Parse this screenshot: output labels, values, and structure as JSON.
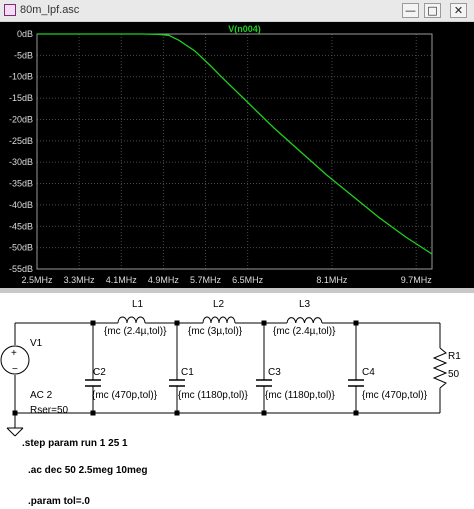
{
  "window": {
    "title": "80m_lpf.asc",
    "min_glyph": "—",
    "max_glyph": "□",
    "close_glyph": "✕"
  },
  "chart_data": {
    "type": "line",
    "series": [
      {
        "name": "V(n004)",
        "color": "#1fcf1f",
        "x": [
          2.5,
          3.0,
          3.5,
          4.0,
          4.5,
          4.8,
          5.0,
          5.2,
          5.5,
          5.8,
          6.0,
          6.5,
          7.0,
          7.5,
          8.0,
          8.5,
          9.0,
          9.5,
          10.0
        ],
        "y": [
          0,
          0,
          0,
          0,
          0,
          -0.1,
          -0.3,
          -1.5,
          -4,
          -7.5,
          -10,
          -16,
          -22,
          -27.5,
          -33,
          -38,
          -43,
          -47.5,
          -51.5
        ]
      }
    ],
    "x_tick_labels": [
      "2.5MHz",
      "3.3MHz",
      "4.1MHz",
      "4.9MHz",
      "5.7MHz",
      "6.5MHz",
      "8.1MHz",
      "9.7MHz"
    ],
    "x_tick_values": [
      2.5,
      3.3,
      4.1,
      4.9,
      5.7,
      6.5,
      8.1,
      9.7
    ],
    "y_tick_labels": [
      "0dB",
      "-5dB",
      "-10dB",
      "-15dB",
      "-20dB",
      "-25dB",
      "-30dB",
      "-35dB",
      "-40dB",
      "-45dB",
      "-50dB",
      "-55dB"
    ],
    "y_tick_values": [
      0,
      -5,
      -10,
      -15,
      -20,
      -25,
      -30,
      -35,
      -40,
      -45,
      -50,
      -55
    ],
    "xlim": [
      2.5,
      10.0
    ],
    "ylim": [
      -55,
      0
    ],
    "grid": true,
    "background": "#000000",
    "grid_color": "#4a4a4a",
    "label_color": "#dcdcdc"
  },
  "schematic": {
    "components": {
      "V1": {
        "name": "V1",
        "value_line1": "AC 2",
        "value_line2": "Rser=50"
      },
      "L1": {
        "name": "L1",
        "value": "{mc (2.4µ,tol)}"
      },
      "L2": {
        "name": "L2",
        "value": "{mc (3µ,tol)}"
      },
      "L3": {
        "name": "L3",
        "value": "{mc (2.4µ,tol)}"
      },
      "C2": {
        "name": "C2",
        "value": "{mc (470p,tol)}"
      },
      "C1": {
        "name": "C1",
        "value": "{mc (1180p,tol)}"
      },
      "C3": {
        "name": "C3",
        "value": "{mc (1180p,tol)}"
      },
      "C4": {
        "name": "C4",
        "value": "{mc (470p,tol)}"
      },
      "R1": {
        "name": "R1",
        "value": "50"
      }
    },
    "directives": {
      "step": ".step param run 1 25 1",
      "ac": ".ac dec 50 2.5meg 10meg",
      "param": ".param tol=.0"
    }
  }
}
